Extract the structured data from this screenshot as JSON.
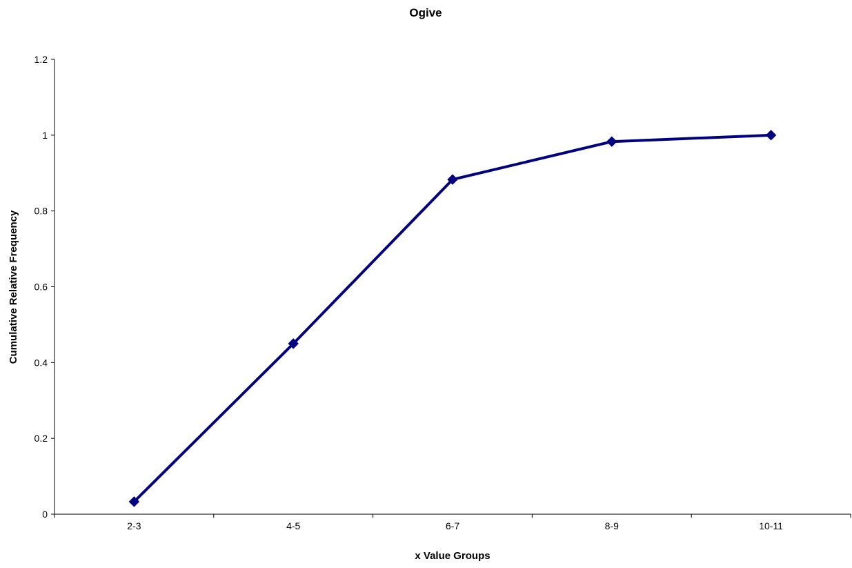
{
  "chart_data": {
    "type": "line",
    "title": "Ogive",
    "xlabel": "x Value Groups",
    "ylabel": "Cumulative Relative Frequency",
    "categories": [
      "2-3",
      "4-5",
      "6-7",
      "8-9",
      "10-11"
    ],
    "series": [
      {
        "values": [
          0.033,
          0.45,
          0.883,
          0.983,
          1.0
        ],
        "color": "#000080",
        "marker": "diamond"
      }
    ],
    "ylim": [
      0,
      1.2
    ],
    "yticks": [
      "0",
      "0.2",
      "0.4",
      "0.6",
      "0.8",
      "1",
      "1.2"
    ],
    "grid": false,
    "legend": "none"
  }
}
